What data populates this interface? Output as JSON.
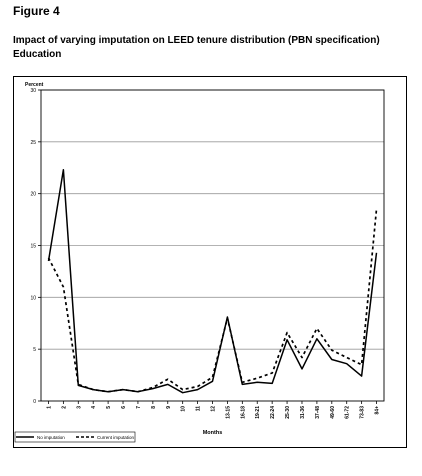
{
  "figure_label": "Figure 4",
  "title_line1": "Impact of varying imputation on LEED tenure distribution (PBN specification)",
  "title_line2": "Education",
  "chart_data": {
    "type": "line",
    "ylabel": "Percent",
    "xlabel": "Months",
    "ylim": [
      0,
      30
    ],
    "yticks": [
      0,
      5,
      10,
      15,
      20,
      25,
      30
    ],
    "grid": true,
    "legend_position": "bottom-left",
    "categories": [
      "1",
      "2",
      "3",
      "4",
      "5",
      "6",
      "7",
      "8",
      "9",
      "10",
      "11",
      "12",
      "13-15",
      "16-18",
      "19-21",
      "22-24",
      "25-30",
      "31-36",
      "37-48",
      "49-60",
      "61-72",
      "73-83",
      "84+"
    ],
    "series": [
      {
        "name": "No imputation",
        "style": "solid",
        "values": [
          13.5,
          22.3,
          1.5,
          1.1,
          0.9,
          1.1,
          0.9,
          1.2,
          1.6,
          0.8,
          1.1,
          1.9,
          8.1,
          1.6,
          1.8,
          1.7,
          5.9,
          3.1,
          6.0,
          4.0,
          3.6,
          2.4,
          14.3
        ]
      },
      {
        "name": "Current imputation",
        "style": "dashed",
        "values": [
          13.8,
          11.0,
          1.6,
          1.1,
          0.9,
          1.1,
          0.9,
          1.3,
          2.1,
          1.1,
          1.4,
          2.3,
          8.0,
          1.8,
          2.2,
          2.7,
          6.6,
          4.2,
          7.0,
          4.9,
          4.2,
          3.5,
          18.5
        ]
      }
    ]
  }
}
